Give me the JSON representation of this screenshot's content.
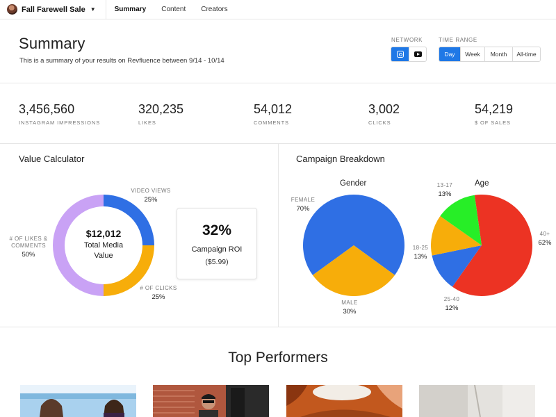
{
  "nav": {
    "campaign": "Fall Farewell Sale",
    "links": [
      "Summary",
      "Content",
      "Creators"
    ]
  },
  "header": {
    "title": "Summary",
    "subtitle": "This is a summary of your results on Revfluence between 9/14 - 10/14"
  },
  "network": {
    "label": "NETWORK",
    "options": [
      "instagram-icon",
      "youtube-icon"
    ],
    "selected": "instagram-icon"
  },
  "time_range": {
    "label": "TIME RANGE",
    "options": [
      "Day",
      "Week",
      "Month",
      "All-time"
    ],
    "selected": "Day"
  },
  "stats": [
    {
      "value": "3,456,560",
      "label": "INSTAGRAM IMPRESSIONS"
    },
    {
      "value": "320,235",
      "label": "LIKES"
    },
    {
      "value": "54,012",
      "label": "COMMENTS"
    },
    {
      "value": "3,002",
      "label": "CLICKS"
    },
    {
      "value": "54,219",
      "label": "$ OF SALES"
    }
  ],
  "value_calculator": {
    "title": "Value Calculator",
    "total_value": "$12,012",
    "total_label_1": "Total Media",
    "total_label_2": "Value",
    "segments": [
      {
        "label": "VIDEO VIEWS",
        "value": "25%",
        "pct": 25,
        "color": "#2f6fe4"
      },
      {
        "label": "# OF CLICKS",
        "value": "25%",
        "pct": 25,
        "color": "#f7ad0a"
      },
      {
        "label": "# OF LIKES &",
        "label2": "COMMENTS",
        "value": "50%",
        "pct": 50,
        "color": "#c9a2f5"
      }
    ],
    "roi_value": "32%",
    "roi_label": "Campaign ROI",
    "roi_sub": "($5.99)"
  },
  "campaign_breakdown": {
    "title": "Campaign Breakdown",
    "gender": {
      "title": "Gender",
      "slices": [
        {
          "label": "FEMALE",
          "value": "70%",
          "pct": 70,
          "color": "#2f6fe4"
        },
        {
          "label": "MALE",
          "value": "30%",
          "pct": 30,
          "color": "#f7ad0a"
        }
      ]
    },
    "age": {
      "title": "Age",
      "slices": [
        {
          "label": "40+",
          "value": "62%",
          "pct": 62,
          "color": "#ec3323"
        },
        {
          "label": "25-40",
          "value": "12%",
          "pct": 12,
          "color": "#2f6fe4"
        },
        {
          "label": "18-25",
          "value": "13%",
          "pct": 13,
          "color": "#f7ad0a"
        },
        {
          "label": "13-17",
          "value": "13%",
          "pct": 13,
          "color": "#27ee27"
        }
      ]
    }
  },
  "performers": {
    "title": "Top Performers"
  }
}
